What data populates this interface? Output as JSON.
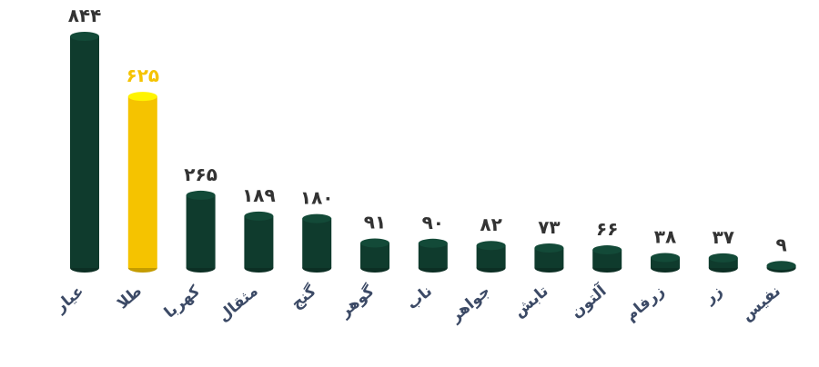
{
  "chart_data": {
    "type": "bar",
    "categories": [
      "عیار",
      "طلا",
      "کهربا",
      "مثقال",
      "گنج",
      "گوهر",
      "ناب",
      "جواهر",
      "تابش",
      "آلتون",
      "زرفام",
      "زر",
      "نفیس"
    ],
    "values": [
      844,
      625,
      265,
      189,
      180,
      91,
      90,
      82,
      73,
      66,
      38,
      37,
      9
    ],
    "value_labels": [
      "۸۴۴",
      "۶۲۵",
      "۲۶۵",
      "۱۸۹",
      "۱۸۰",
      "۹۱",
      "۹۰",
      "۸۲",
      "۷۳",
      "۶۶",
      "۳۸",
      "۳۷",
      "۹"
    ],
    "colors": [
      "#0f3b2d",
      "#f5c300",
      "#0f3b2d",
      "#0f3b2d",
      "#0f3b2d",
      "#0f3b2d",
      "#0f3b2d",
      "#0f3b2d",
      "#0f3b2d",
      "#0f3b2d",
      "#0f3b2d",
      "#0f3b2d",
      "#0f3b2d"
    ]
  }
}
